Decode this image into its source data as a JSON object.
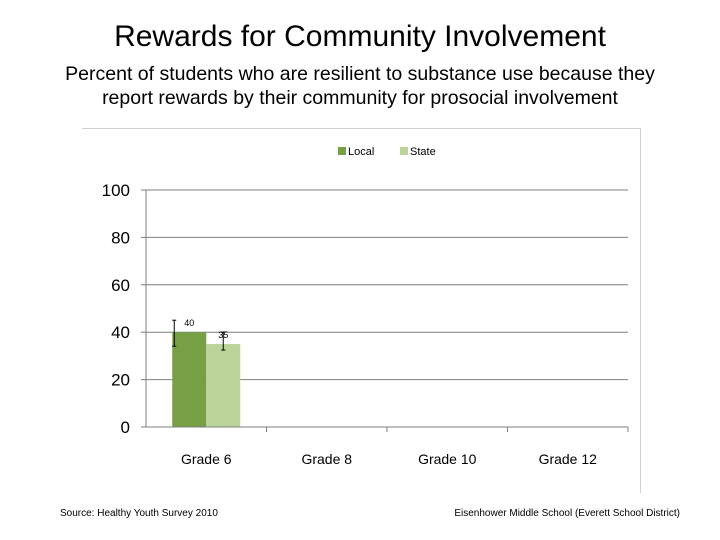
{
  "title": "Rewards for Community Involvement",
  "subtitle": "Percent of students who are resilient to substance use because they report rewards by their community for prosocial involvement",
  "footer": {
    "source": "Source: Healthy Youth Survey 2010",
    "school": "Eisenhower Middle School (Everett School District)"
  },
  "chart_data": {
    "type": "bar",
    "categories": [
      "Grade 6",
      "Grade 8",
      "Grade 10",
      "Grade 12"
    ],
    "series": [
      {
        "name": "Local",
        "color": "#77a044",
        "values": [
          40,
          null,
          null,
          null
        ],
        "labels": [
          "40",
          null,
          null,
          null
        ]
      },
      {
        "name": "State",
        "color": "#bcd49a",
        "values": [
          35,
          null,
          null,
          null
        ],
        "labels": [
          "35",
          null,
          null,
          null
        ]
      }
    ],
    "ylim": [
      0,
      100
    ],
    "yticks": [
      "0",
      "20",
      "40",
      "60",
      "80",
      "100"
    ],
    "grid": true,
    "legend": "top-center",
    "error_bars": true
  }
}
